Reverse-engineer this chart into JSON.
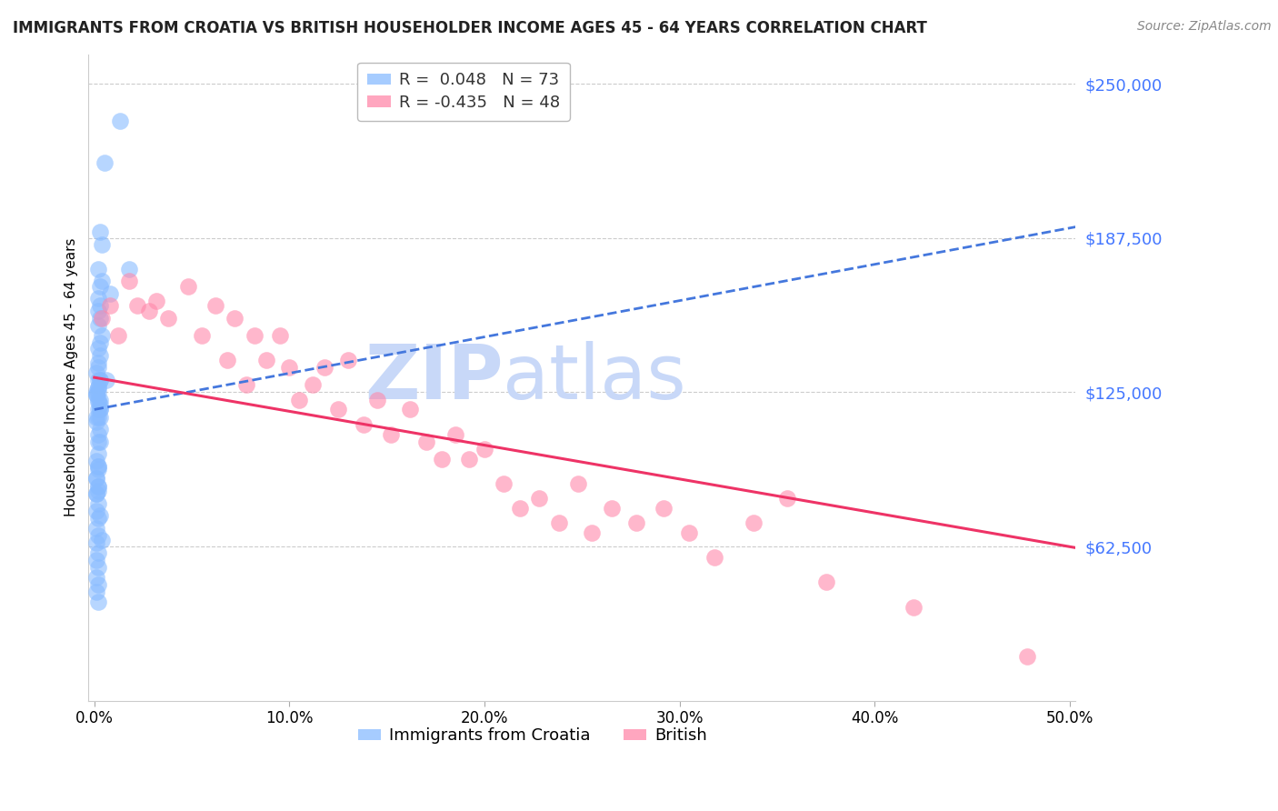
{
  "title": "IMMIGRANTS FROM CROATIA VS BRITISH HOUSEHOLDER INCOME AGES 45 - 64 YEARS CORRELATION CHART",
  "source": "Source: ZipAtlas.com",
  "ylabel": "Householder Income Ages 45 - 64 years",
  "xlim": [
    -0.003,
    0.503
  ],
  "ylim": [
    0,
    262000
  ],
  "yticks": [
    62500,
    125000,
    187500,
    250000
  ],
  "ytick_labels": [
    "$62,500",
    "$125,000",
    "$187,500",
    "$250,000"
  ],
  "xticks": [
    0.0,
    0.1,
    0.2,
    0.3,
    0.4,
    0.5
  ],
  "xtick_labels": [
    "0.0%",
    "10.0%",
    "20.0%",
    "30.0%",
    "40.0%",
    "50.0%"
  ],
  "blue_color": "#88bbff",
  "pink_color": "#ff88aa",
  "trend_blue_color": "#4477dd",
  "trend_pink_color": "#ee3366",
  "ytick_color": "#4477ff",
  "watermark_color": "#c8d8f8",
  "croatia_label": "Immigrants from Croatia",
  "british_label": "British",
  "R_croatia": 0.048,
  "N_croatia": 73,
  "R_british": -0.435,
  "N_british": 48,
  "trend_blue_x0": 0.0,
  "trend_blue_y0": 118000,
  "trend_blue_x1": 0.503,
  "trend_blue_y1": 192000,
  "trend_pink_x0": 0.0,
  "trend_pink_y0": 131000,
  "trend_pink_x1": 0.503,
  "trend_pink_y1": 62000,
  "croatia_x": [
    0.005,
    0.003,
    0.004,
    0.002,
    0.004,
    0.003,
    0.002,
    0.003,
    0.002,
    0.003,
    0.002,
    0.004,
    0.003,
    0.002,
    0.003,
    0.002,
    0.001,
    0.003,
    0.002,
    0.001,
    0.002,
    0.003,
    0.002,
    0.001,
    0.002,
    0.003,
    0.002,
    0.001,
    0.002,
    0.003,
    0.002,
    0.001,
    0.002,
    0.003,
    0.002,
    0.001,
    0.002,
    0.001,
    0.002,
    0.001,
    0.002,
    0.001,
    0.002,
    0.001,
    0.002,
    0.001,
    0.002,
    0.001,
    0.002,
    0.001,
    0.002,
    0.001,
    0.002,
    0.001,
    0.002,
    0.001,
    0.002,
    0.001,
    0.002,
    0.003,
    0.002,
    0.003,
    0.002,
    0.013,
    0.002,
    0.003,
    0.004,
    0.002,
    0.003,
    0.008,
    0.006,
    0.018,
    0.003
  ],
  "croatia_y": [
    218000,
    190000,
    185000,
    175000,
    170000,
    168000,
    163000,
    160000,
    158000,
    155000,
    152000,
    148000,
    145000,
    143000,
    140000,
    137000,
    133000,
    130000,
    127000,
    124000,
    135000,
    130000,
    127000,
    124000,
    121000,
    118000,
    130000,
    125000,
    122000,
    118000,
    115000,
    113000,
    125000,
    122000,
    118000,
    115000,
    100000,
    97000,
    94000,
    90000,
    87000,
    84000,
    95000,
    90000,
    87000,
    84000,
    80000,
    77000,
    74000,
    70000,
    67000,
    64000,
    60000,
    57000,
    54000,
    50000,
    47000,
    44000,
    40000,
    115000,
    108000,
    105000,
    95000,
    235000,
    85000,
    75000,
    65000,
    105000,
    110000,
    165000,
    130000,
    175000,
    120000
  ],
  "british_x": [
    0.004,
    0.008,
    0.012,
    0.018,
    0.022,
    0.028,
    0.032,
    0.038,
    0.048,
    0.055,
    0.062,
    0.068,
    0.072,
    0.078,
    0.082,
    0.088,
    0.095,
    0.1,
    0.105,
    0.112,
    0.118,
    0.125,
    0.13,
    0.138,
    0.145,
    0.152,
    0.162,
    0.17,
    0.178,
    0.185,
    0.192,
    0.2,
    0.21,
    0.218,
    0.228,
    0.238,
    0.248,
    0.255,
    0.265,
    0.278,
    0.292,
    0.305,
    0.318,
    0.338,
    0.355,
    0.375,
    0.42,
    0.478
  ],
  "british_y": [
    155000,
    160000,
    148000,
    170000,
    160000,
    158000,
    162000,
    155000,
    168000,
    148000,
    160000,
    138000,
    155000,
    128000,
    148000,
    138000,
    148000,
    135000,
    122000,
    128000,
    135000,
    118000,
    138000,
    112000,
    122000,
    108000,
    118000,
    105000,
    98000,
    108000,
    98000,
    102000,
    88000,
    78000,
    82000,
    72000,
    88000,
    68000,
    78000,
    72000,
    78000,
    68000,
    58000,
    72000,
    82000,
    48000,
    38000,
    18000
  ]
}
